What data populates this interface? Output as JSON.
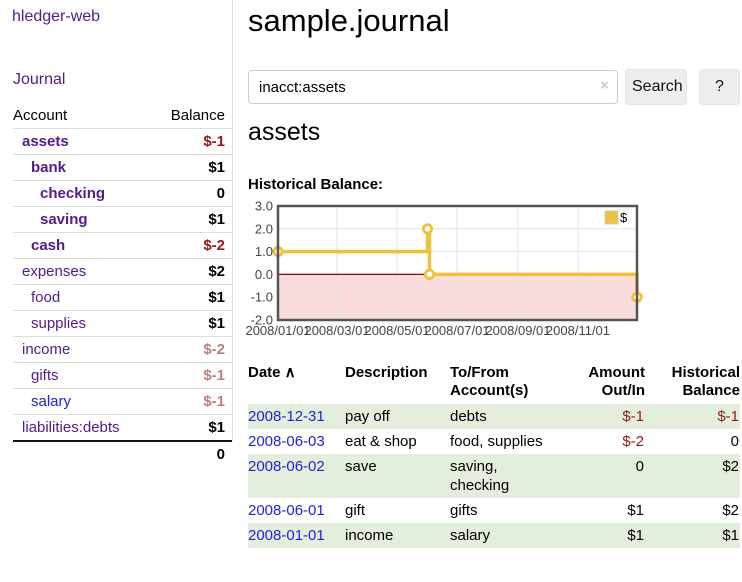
{
  "app": {
    "brand": "hledger-web"
  },
  "sidebar": {
    "journal_link": "Journal",
    "header": {
      "account": "Account",
      "balance": "Balance"
    },
    "accounts": [
      {
        "name": "assets",
        "balance": "$-1",
        "indent": 1,
        "bold": true,
        "balance_style": "negstrong"
      },
      {
        "name": "bank",
        "balance": "$1",
        "indent": 2,
        "bold": true,
        "balance_style": "pos"
      },
      {
        "name": "checking",
        "balance": "0",
        "indent": 3,
        "bold": true,
        "balance_style": "pos"
      },
      {
        "name": "saving",
        "balance": "$1",
        "indent": 3,
        "bold": true,
        "balance_style": "pos"
      },
      {
        "name": "cash",
        "balance": "$-2",
        "indent": 2,
        "bold": true,
        "balance_style": "negstrong"
      },
      {
        "name": "expenses",
        "balance": "$2",
        "indent": 1,
        "bold": false,
        "balance_style": "pos"
      },
      {
        "name": "food",
        "balance": "$1",
        "indent": 2,
        "bold": false,
        "balance_style": "pos"
      },
      {
        "name": "supplies",
        "balance": "$1",
        "indent": 2,
        "bold": false,
        "balance_style": "pos"
      },
      {
        "name": "income",
        "balance": "$-2",
        "indent": 1,
        "bold": false,
        "balance_style": "negdim"
      },
      {
        "name": "gifts",
        "balance": "$-1",
        "indent": 2,
        "bold": false,
        "balance_style": "negdim"
      },
      {
        "name": "salary",
        "balance": "$-1",
        "indent": 2,
        "bold": false,
        "balance_style": "negdim",
        "link_style": "blue"
      },
      {
        "name": "liabilities:debts",
        "balance": "$1",
        "indent": 1,
        "bold": false,
        "balance_style": "pos"
      }
    ],
    "total": "0"
  },
  "main": {
    "title": "sample.journal",
    "search": {
      "value": "inacct:assets",
      "clear_icon": "×",
      "search_button": "Search",
      "help_button": "?"
    },
    "account_heading": "assets",
    "chart_title": "Historical Balance:"
  },
  "chart_data": {
    "type": "line",
    "step": true,
    "title": "Historical Balance",
    "series": [
      {
        "name": "$",
        "color": "#EDC240",
        "points": [
          [
            "2008-01-01",
            1
          ],
          [
            "2008-06-01",
            2
          ],
          [
            "2008-06-03",
            0
          ],
          [
            "2008-12-31",
            -1
          ]
        ]
      }
    ],
    "x_ticks": [
      {
        "label": "2008/01/01",
        "date": "2008-01-01"
      },
      {
        "label": "2008/03/01",
        "date": "2008-03-01"
      },
      {
        "label": "2008/05/01",
        "date": "2008-05-01"
      },
      {
        "label": "2008/07/01",
        "date": "2008-07-01"
      },
      {
        "label": "2008/09/01",
        "date": "2008-09-01"
      },
      {
        "label": "2008/11/01",
        "date": "2008-11-01"
      }
    ],
    "y_ticks": [
      "3.0",
      "2.0",
      "1.0",
      "0.0",
      "-1.0",
      "-2.0"
    ],
    "ylim": [
      -2,
      3
    ],
    "xlim": [
      "2008-01-01",
      "2008-12-31"
    ],
    "legend": {
      "label": "$",
      "position": "top-right"
    },
    "grid": true,
    "colors": {
      "border": "#545454",
      "grid": "#e3e3e3",
      "zero_line": "#8b0000",
      "negative_fill": "#fbdcdc",
      "marker_fill": "#ffffff"
    }
  },
  "register": {
    "columns": [
      {
        "line1": "Date",
        "line2": "",
        "align": "left",
        "sort_icon": "∧"
      },
      {
        "line1": "Description",
        "line2": "",
        "align": "left"
      },
      {
        "line1": "To/From",
        "line2": "Account(s)",
        "align": "left"
      },
      {
        "line1": "Amount",
        "line2": "Out/In",
        "align": "right"
      },
      {
        "line1": "Historical",
        "line2": "Balance",
        "align": "right"
      }
    ],
    "rows": [
      {
        "date": "2008-12-31",
        "description": "pay off",
        "accounts": "debts",
        "amount": "$-1",
        "amount_negative": true,
        "balance": "$-1",
        "balance_negative": true
      },
      {
        "date": "2008-06-03",
        "description": "eat & shop",
        "accounts": "food, supplies",
        "amount": "$-2",
        "amount_negative": true,
        "balance": "0",
        "balance_negative": false
      },
      {
        "date": "2008-06-02",
        "description": "save",
        "accounts": "saving, checking",
        "amount": "0",
        "amount_negative": false,
        "balance": "$2",
        "balance_negative": false
      },
      {
        "date": "2008-06-01",
        "description": "gift",
        "accounts": "gifts",
        "amount": "$1",
        "amount_negative": false,
        "balance": "$2",
        "balance_negative": false
      },
      {
        "date": "2008-01-01",
        "description": "income",
        "accounts": "salary",
        "amount": "$1",
        "amount_negative": false,
        "balance": "$1",
        "balance_negative": false
      }
    ]
  },
  "colors": {
    "purple_link": "#551A8B",
    "blue_link": "#2222dd",
    "negative_strong": "#971919",
    "negative_dim": "#c07f7f",
    "row_stripe": "#e3eedc",
    "accent_gold": "#EDC240"
  }
}
